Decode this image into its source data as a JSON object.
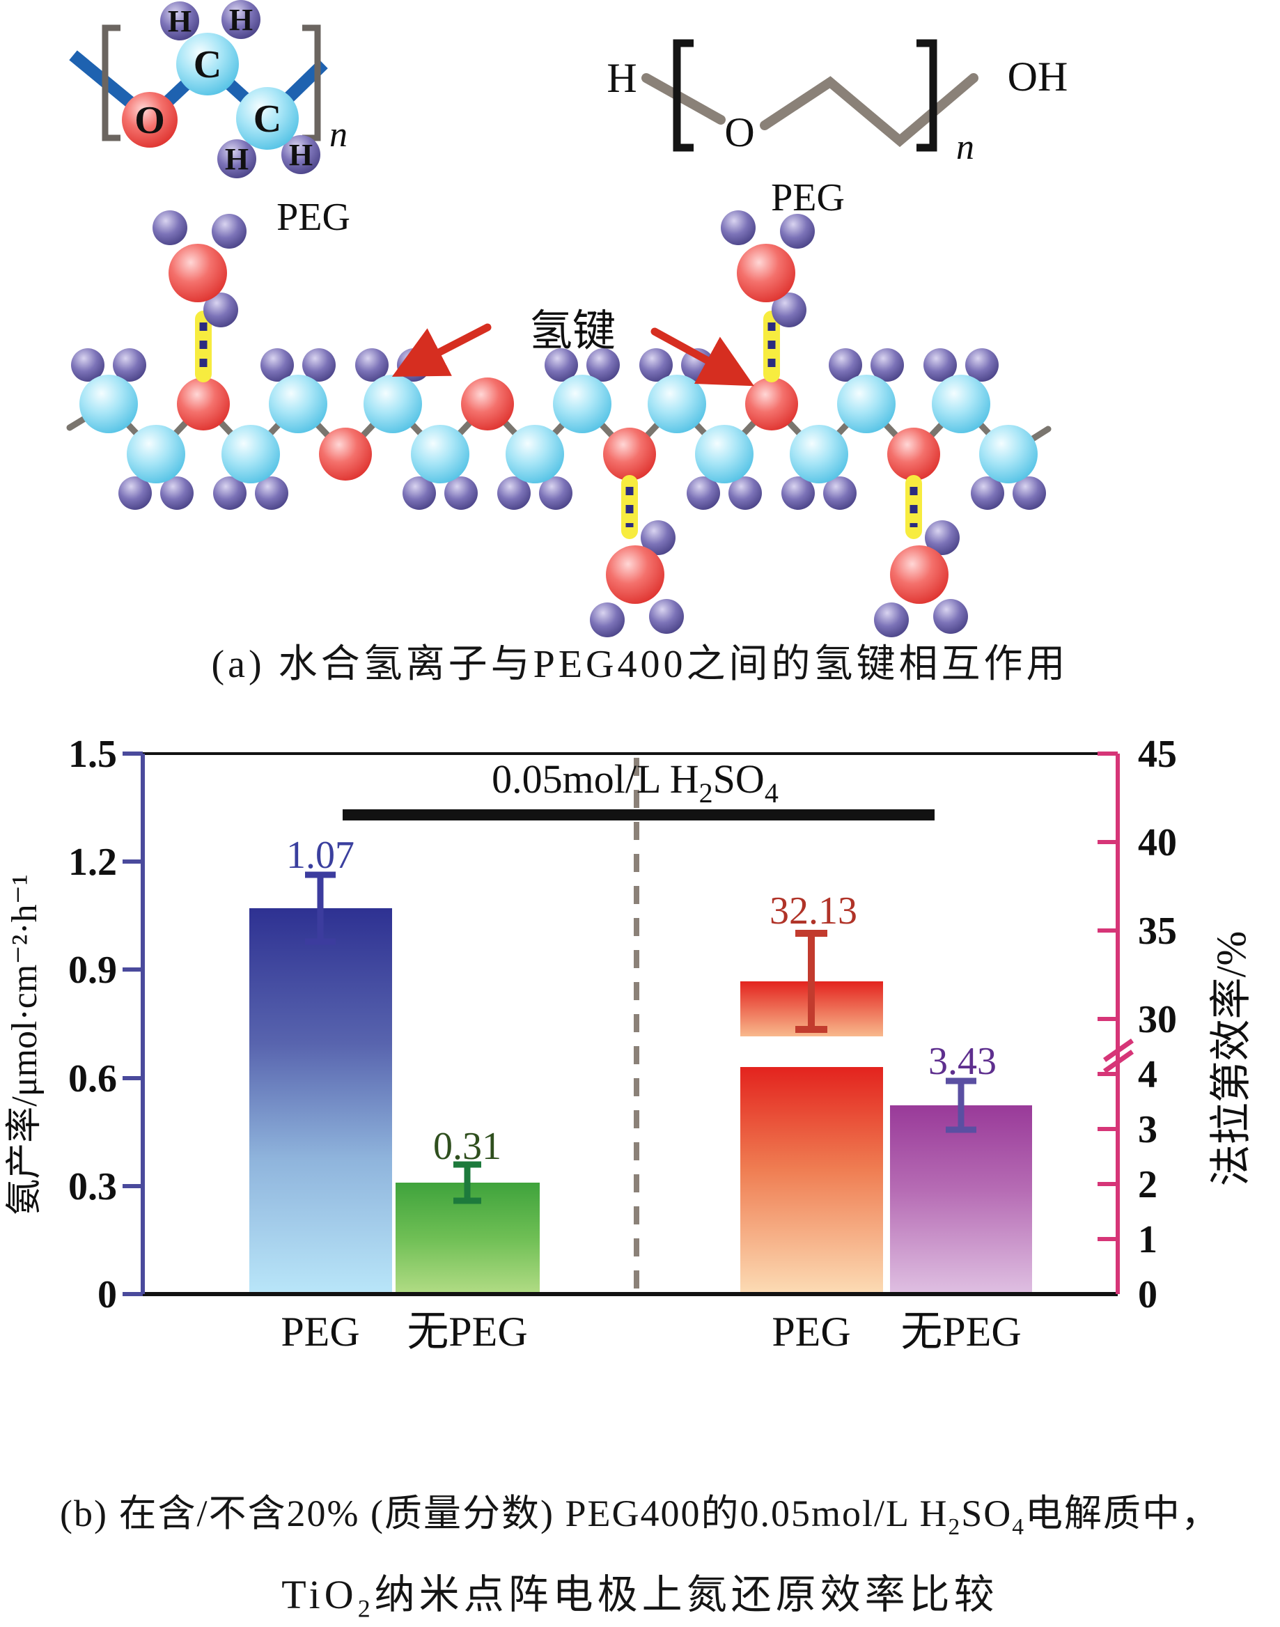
{
  "panel_a": {
    "caption": "(a) 水合氢离子与PEG400之间的氢键相互作用",
    "hbond_label": "氢键",
    "ballstick": {
      "label": "PEG",
      "o": "O",
      "c": "C",
      "h": "H",
      "n": "n"
    },
    "skeletal": {
      "label": "PEG",
      "h_end": "H",
      "o": "O",
      "n": "n",
      "oh_end": "OH"
    },
    "colors": {
      "carbon_ball": "#6fd0ee",
      "oxygen_ball": "#ee4440",
      "hydrogen_ball": "#5a51a0",
      "bond_blue": "#1e62b0",
      "bond_gray": "#8a8178",
      "hbond_yellow": "#f7ec3f",
      "hbond_dash_blue": "#2b2b80",
      "arrow_red": "#d62e20"
    }
  },
  "chart_data": {
    "type": "bar",
    "title": "0.05mol/L H2SO4",
    "title_parts": {
      "p1": "0.05mol/L H",
      "s1": "2",
      "p2": "SO",
      "s2": "4"
    },
    "categories": [
      "PEG",
      "无PEG",
      "PEG",
      "无PEG"
    ],
    "series": [
      {
        "name": "氨产率",
        "axis": "left",
        "unit": "μmol·cm⁻²·h⁻¹",
        "categories": [
          "PEG",
          "无PEG"
        ],
        "values": [
          1.07,
          0.31
        ],
        "value_labels": [
          "1.07",
          "0.31"
        ],
        "errors_approx": [
          0.1,
          0.04
        ],
        "bar_top_colors": [
          "#2e3192",
          "#3fa33c"
        ],
        "bar_bottom_colors": [
          "#b9e6f9",
          "#b2dc85"
        ]
      },
      {
        "name": "法拉第效率",
        "axis": "right",
        "unit": "%",
        "categories": [
          "PEG",
          "无PEG"
        ],
        "values": [
          32.13,
          3.43
        ],
        "value_labels": [
          "32.13",
          "3.43"
        ],
        "errors_approx": [
          2.8,
          0.4
        ],
        "bar_top_colors": [
          "#e3231e",
          "#993a99"
        ],
        "bar_bottom_colors": [
          "#fcdcb5",
          "#dfc0e2"
        ]
      }
    ],
    "left_axis": {
      "label": "氨产率/μmol·cm⁻²·h⁻¹",
      "range": [
        0,
        1.5
      ],
      "tick_labels": [
        "1.5",
        "1.2",
        "0.9",
        "0.6",
        "0.3",
        "0"
      ],
      "color": "#4a4a9c"
    },
    "right_axis": {
      "label": "法拉第效率/%",
      "broken": true,
      "upper_range": [
        29,
        45
      ],
      "upper_tick_labels": [
        "45",
        "40",
        "35",
        "30"
      ],
      "lower_range": [
        0,
        4.2
      ],
      "lower_tick_labels": [
        "4",
        "3",
        "2",
        "1",
        "0"
      ],
      "color": "#d63577"
    },
    "value_label_colors": [
      "#3a3f9e",
      "#2f4f1e",
      "#b03328",
      "#5e2f8e"
    ],
    "divider_style": "dashed",
    "grid": false,
    "legend": false
  },
  "caption_b": {
    "line1": {
      "p1": "(b) 在含/不含20% (质量分数) PEG400的0.05mol/L H",
      "s1": "2",
      "p2": "SO",
      "s2": "4",
      "p3": "电解质中，"
    },
    "line2": {
      "p1": "TiO",
      "s1": "2",
      "p2": "纳米点阵电极上氮还原效率比较"
    }
  }
}
